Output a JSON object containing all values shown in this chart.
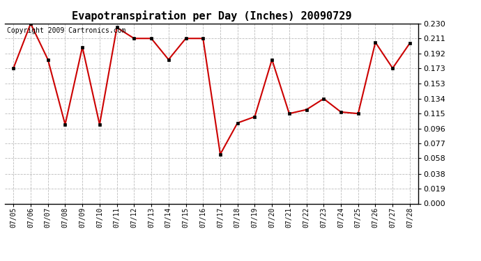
{
  "title": "Evapotranspiration per Day (Inches) 20090729",
  "copyright_text": "Copyright 2009 Cartronics.com",
  "dates": [
    "07/05",
    "07/06",
    "07/07",
    "07/08",
    "07/09",
    "07/10",
    "07/11",
    "07/12",
    "07/13",
    "07/14",
    "07/15",
    "07/16",
    "07/17",
    "07/18",
    "07/19",
    "07/20",
    "07/21",
    "07/22",
    "07/23",
    "07/24",
    "07/25",
    "07/26",
    "07/27",
    "07/28"
  ],
  "values": [
    0.173,
    0.23,
    0.184,
    0.101,
    0.2,
    0.101,
    0.225,
    0.211,
    0.211,
    0.184,
    0.211,
    0.211,
    0.063,
    0.103,
    0.111,
    0.184,
    0.115,
    0.12,
    0.134,
    0.117,
    0.115,
    0.206,
    0.173,
    0.205
  ],
  "ylim": [
    0.0,
    0.23
  ],
  "yticks": [
    0.0,
    0.019,
    0.038,
    0.058,
    0.077,
    0.096,
    0.115,
    0.134,
    0.153,
    0.173,
    0.192,
    0.211,
    0.23
  ],
  "line_color": "#cc0000",
  "marker_color": "#000000",
  "bg_color": "#ffffff",
  "grid_color": "#bbbbbb",
  "title_fontsize": 11,
  "copyright_fontsize": 7,
  "tick_fontsize": 8,
  "xtick_fontsize": 7
}
